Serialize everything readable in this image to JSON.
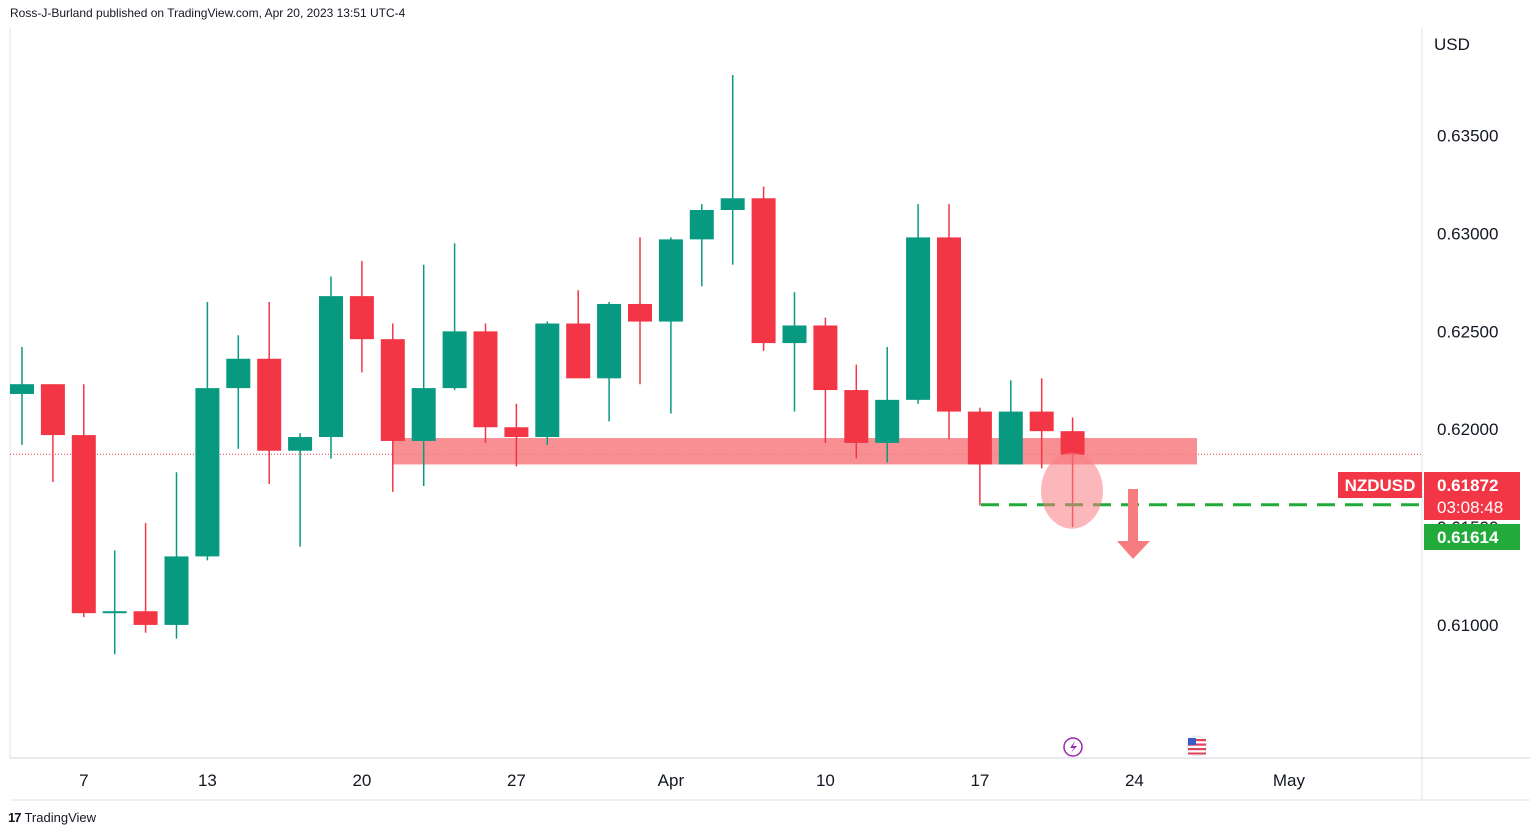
{
  "header": {
    "text": "Ross-J-Burland published on TradingView.com, Apr 20, 2023 13:51 UTC-4"
  },
  "footer": {
    "brand": "TradingView",
    "logo": "17"
  },
  "colors": {
    "up": "#089981",
    "down": "#f23645",
    "zone": "#f77c80",
    "support": "#22ab3b",
    "text": "#131722"
  },
  "chart_data": {
    "type": "candlestick",
    "symbol": "NZDUSD",
    "currency": "USD",
    "interval": "1D",
    "last_price": "0.61872",
    "countdown": "03:08:48",
    "support_label": "0.61614",
    "support_level": 0.61614,
    "ylim": [
      0.6032,
      0.6405
    ],
    "y_ticks": [
      0.61,
      0.615,
      0.62,
      0.625,
      0.63,
      0.635
    ],
    "y_tick_labels": [
      "0.61000",
      "0.61500",
      "0.62000",
      "0.62500",
      "0.63000",
      "0.63500"
    ],
    "x_ticks": [
      {
        "label": "7",
        "index": 2
      },
      {
        "label": "13",
        "index": 6
      },
      {
        "label": "20",
        "index": 11
      },
      {
        "label": "27",
        "index": 16
      },
      {
        "label": "Apr",
        "index": 21
      },
      {
        "label": "10",
        "index": 26
      },
      {
        "label": "17",
        "index": 31
      },
      {
        "label": "24",
        "index": 36
      },
      {
        "label": "May",
        "index": 41
      }
    ],
    "candles": [
      {
        "o": 0.6218,
        "h": 0.6242,
        "l": 0.6192,
        "c": 0.6223
      },
      {
        "o": 0.6223,
        "h": 0.6223,
        "l": 0.6173,
        "c": 0.6197
      },
      {
        "o": 0.6197,
        "h": 0.6223,
        "l": 0.6104,
        "c": 0.6106
      },
      {
        "o": 0.6106,
        "h": 0.6138,
        "l": 0.6085,
        "c": 0.6107
      },
      {
        "o": 0.6107,
        "h": 0.6152,
        "l": 0.6096,
        "c": 0.61
      },
      {
        "o": 0.61,
        "h": 0.6178,
        "l": 0.6093,
        "c": 0.6135
      },
      {
        "o": 0.6135,
        "h": 0.6265,
        "l": 0.6133,
        "c": 0.6221
      },
      {
        "o": 0.6221,
        "h": 0.6248,
        "l": 0.619,
        "c": 0.6236
      },
      {
        "o": 0.6236,
        "h": 0.6265,
        "l": 0.6172,
        "c": 0.6189
      },
      {
        "o": 0.6189,
        "h": 0.6198,
        "l": 0.614,
        "c": 0.6196
      },
      {
        "o": 0.6196,
        "h": 0.6278,
        "l": 0.6185,
        "c": 0.6268
      },
      {
        "o": 0.6268,
        "h": 0.6286,
        "l": 0.6229,
        "c": 0.6246
      },
      {
        "o": 0.6246,
        "h": 0.6254,
        "l": 0.6168,
        "c": 0.6194
      },
      {
        "o": 0.6194,
        "h": 0.6284,
        "l": 0.6171,
        "c": 0.6221
      },
      {
        "o": 0.6221,
        "h": 0.6295,
        "l": 0.622,
        "c": 0.625
      },
      {
        "o": 0.625,
        "h": 0.6254,
        "l": 0.6193,
        "c": 0.6201
      },
      {
        "o": 0.6201,
        "h": 0.6213,
        "l": 0.6181,
        "c": 0.6196
      },
      {
        "o": 0.6196,
        "h": 0.6255,
        "l": 0.6192,
        "c": 0.6254
      },
      {
        "o": 0.6254,
        "h": 0.6271,
        "l": 0.6229,
        "c": 0.6226
      },
      {
        "o": 0.6226,
        "h": 0.6265,
        "l": 0.6204,
        "c": 0.6264
      },
      {
        "o": 0.6264,
        "h": 0.6298,
        "l": 0.6223,
        "c": 0.6255
      },
      {
        "o": 0.6255,
        "h": 0.6298,
        "l": 0.6208,
        "c": 0.6297
      },
      {
        "o": 0.6297,
        "h": 0.6315,
        "l": 0.6273,
        "c": 0.6312
      },
      {
        "o": 0.6312,
        "h": 0.6381,
        "l": 0.6284,
        "c": 0.6318
      },
      {
        "o": 0.6318,
        "h": 0.6324,
        "l": 0.624,
        "c": 0.6244
      },
      {
        "o": 0.6244,
        "h": 0.627,
        "l": 0.6209,
        "c": 0.6253
      },
      {
        "o": 0.6253,
        "h": 0.6257,
        "l": 0.6193,
        "c": 0.622
      },
      {
        "o": 0.622,
        "h": 0.6233,
        "l": 0.6185,
        "c": 0.6193
      },
      {
        "o": 0.6193,
        "h": 0.6242,
        "l": 0.6183,
        "c": 0.6215
      },
      {
        "o": 0.6215,
        "h": 0.6315,
        "l": 0.6213,
        "c": 0.6298
      },
      {
        "o": 0.6298,
        "h": 0.6315,
        "l": 0.6195,
        "c": 0.6209
      },
      {
        "o": 0.6209,
        "h": 0.6211,
        "l": 0.6161,
        "c": 0.6182
      },
      {
        "o": 0.6182,
        "h": 0.6225,
        "l": 0.6183,
        "c": 0.6209
      },
      {
        "o": 0.6209,
        "h": 0.6226,
        "l": 0.618,
        "c": 0.6199
      },
      {
        "o": 0.6199,
        "h": 0.6206,
        "l": 0.615,
        "c": 0.6187
      }
    ]
  }
}
